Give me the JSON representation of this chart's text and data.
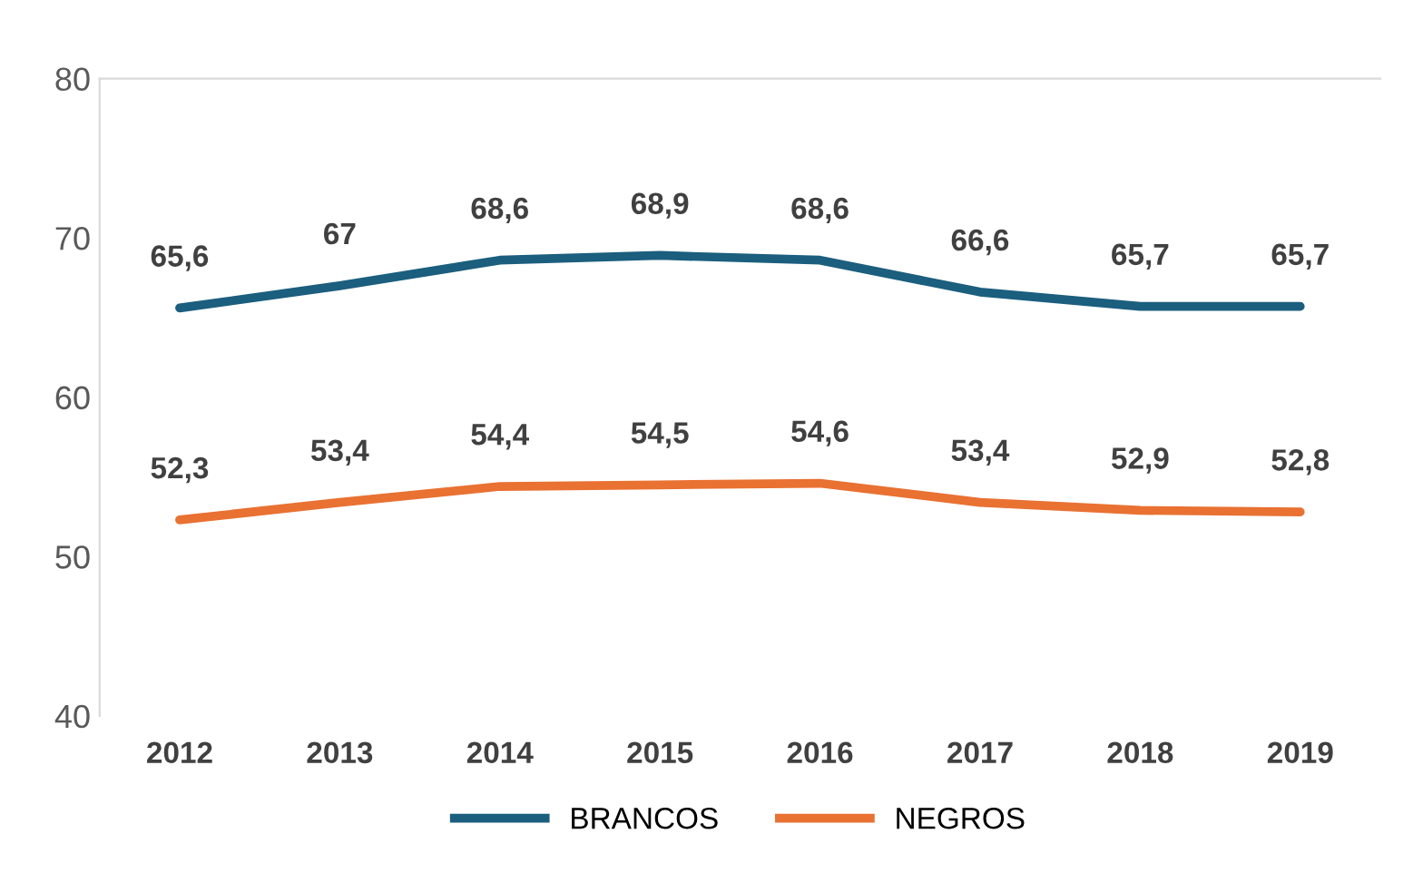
{
  "chart_data": {
    "type": "line",
    "categories": [
      "2012",
      "2013",
      "2014",
      "2015",
      "2016",
      "2017",
      "2018",
      "2019"
    ],
    "series": [
      {
        "name": "BRANCOS",
        "color": "#1b5e7e",
        "values": [
          65.6,
          67,
          68.6,
          68.9,
          68.6,
          66.6,
          65.7,
          65.7
        ],
        "value_labels": [
          "65,6",
          "67",
          "68,6",
          "68,9",
          "68,6",
          "66,6",
          "65,7",
          "65,7"
        ]
      },
      {
        "name": "NEGROS",
        "color": "#e97132",
        "values": [
          52.3,
          53.4,
          54.4,
          54.5,
          54.6,
          53.4,
          52.9,
          52.8
        ],
        "value_labels": [
          "52,3",
          "53,4",
          "54,4",
          "54,5",
          "54,6",
          "53,4",
          "52,9",
          "52,8"
        ]
      }
    ],
    "ylim": [
      40,
      80
    ],
    "yticks": [
      40,
      50,
      60,
      70,
      80
    ],
    "grid": false,
    "legend": "bottom",
    "marker": "none",
    "line_style": "solid"
  }
}
